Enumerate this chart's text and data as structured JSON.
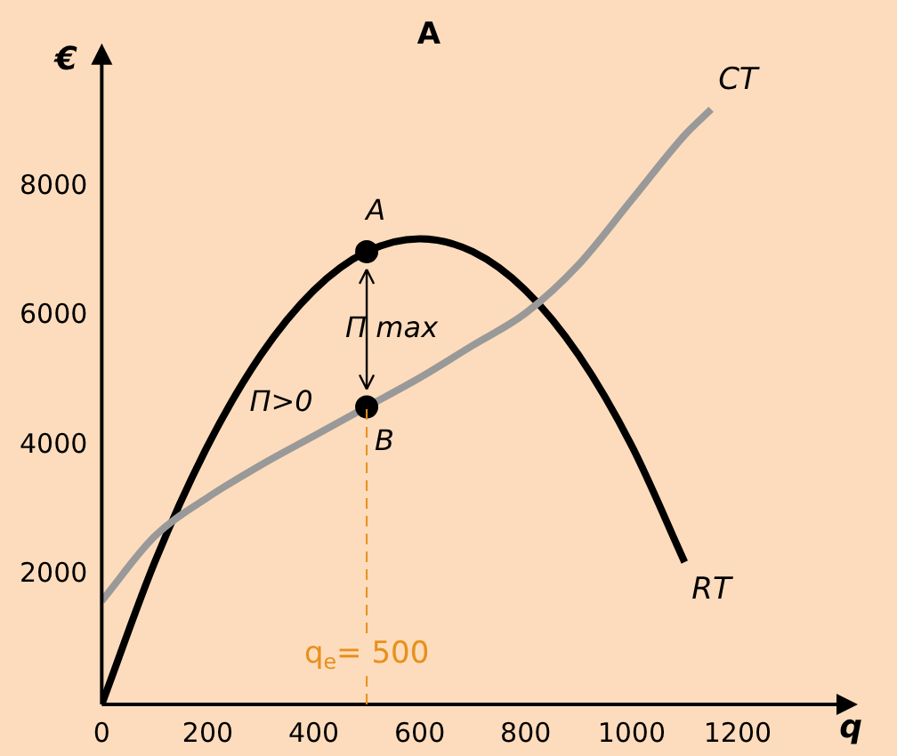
{
  "chart_data": {
    "type": "line",
    "title": "A",
    "xlabel": "q",
    "ylabel": "€",
    "xlim": [
      0,
      1400
    ],
    "ylim": [
      0,
      10000
    ],
    "xticks": [
      0,
      200,
      400,
      600,
      800,
      1000,
      1200
    ],
    "yticks": [
      2000,
      4000,
      6000,
      8000
    ],
    "grid": false,
    "legend": false,
    "marker": "none",
    "line_style": "solid",
    "series": [
      {
        "name": "CT",
        "color": "#999999",
        "x": [
          0,
          100,
          200,
          300,
          400,
          500,
          600,
          700,
          800,
          900,
          1000,
          1100,
          1150
        ],
        "values": [
          1600,
          2600,
          3200,
          3700,
          4150,
          4600,
          5050,
          5550,
          6050,
          6800,
          7800,
          8800,
          9200
        ]
      },
      {
        "name": "RT",
        "color": "#000000",
        "x": [
          0,
          100,
          200,
          300,
          400,
          500,
          600,
          700,
          800,
          900,
          1000,
          1100
        ],
        "values": [
          0,
          2200,
          4000,
          5400,
          6400,
          7000,
          7200,
          7000,
          6400,
          5400,
          4000,
          2200
        ]
      },
      {
        "type": "scatter",
        "marker": "circle",
        "color": "#000000",
        "x": [
          500,
          500
        ],
        "values": [
          7000,
          4600
        ]
      }
    ],
    "ref_lines": [
      {
        "axis": "x",
        "value": 500,
        "label": "q$_{e}$= 500",
        "color": "#e8901c",
        "line_style": "dashed"
      }
    ],
    "annotations": [
      {
        "text": "A",
        "x": 500,
        "y": 7000
      },
      {
        "text": "B",
        "x": 500,
        "y": 4600
      },
      "Π max",
      "Π>0"
    ]
  }
}
